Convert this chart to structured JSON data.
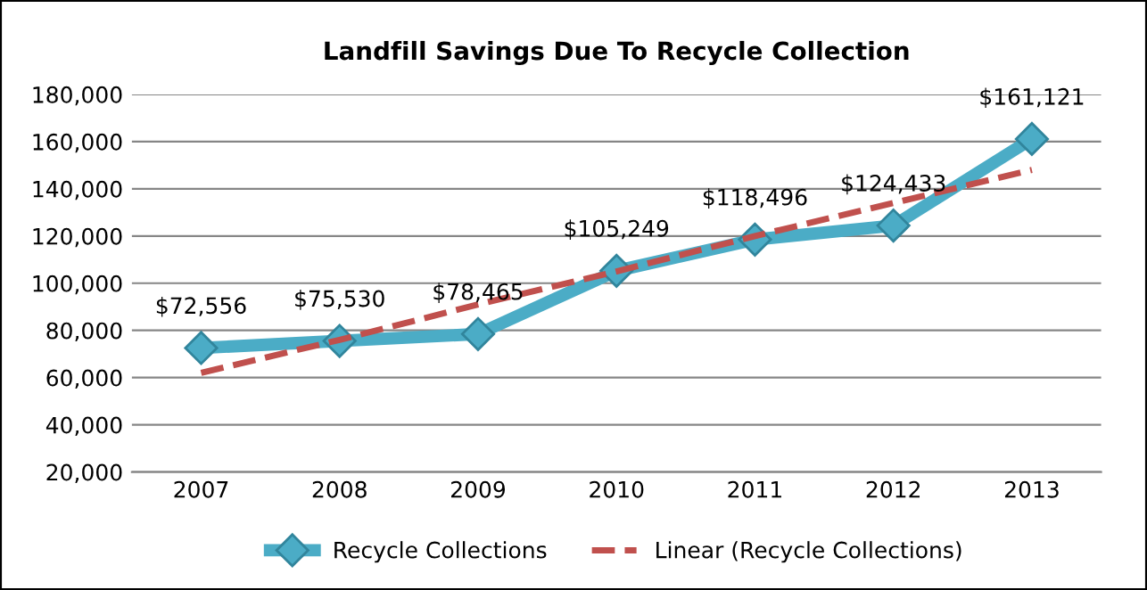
{
  "chart_data": {
    "type": "line",
    "title": "Landfill Savings Due To Recycle Collection",
    "categories": [
      "2007",
      "2008",
      "2009",
      "2010",
      "2011",
      "2012",
      "2013"
    ],
    "series": [
      {
        "name": "Recycle Collections",
        "color": "#4bacc6",
        "values": [
          72556,
          75530,
          78465,
          105249,
          118496,
          124433,
          161121
        ],
        "marker": "diamond",
        "value_labels": [
          "$72,556",
          "$75,530",
          "$78,465",
          "$105,249",
          "$118,496",
          "$124,433",
          "$161,121"
        ]
      },
      {
        "name": "Linear (Recycle Collections)",
        "type": "line",
        "color": "#c0504d",
        "values": [
          62000,
          76000,
          91000,
          105000,
          120000,
          134000,
          148000
        ],
        "line_style": "dashed",
        "marker": "none"
      }
    ],
    "ylim": [
      20000,
      180000
    ],
    "yticks": [
      {
        "value": 20000,
        "label": "20,000"
      },
      {
        "value": 40000,
        "label": "40,000"
      },
      {
        "value": 60000,
        "label": "60,000"
      },
      {
        "value": 80000,
        "label": "80,000"
      },
      {
        "value": 100000,
        "label": "100,000"
      },
      {
        "value": 120000,
        "label": "120,000"
      },
      {
        "value": 140000,
        "label": "140,000"
      },
      {
        "value": 160000,
        "label": "160,000"
      },
      {
        "value": 180000,
        "label": "180,000"
      }
    ],
    "grid": "y",
    "legend": "bottom"
  }
}
